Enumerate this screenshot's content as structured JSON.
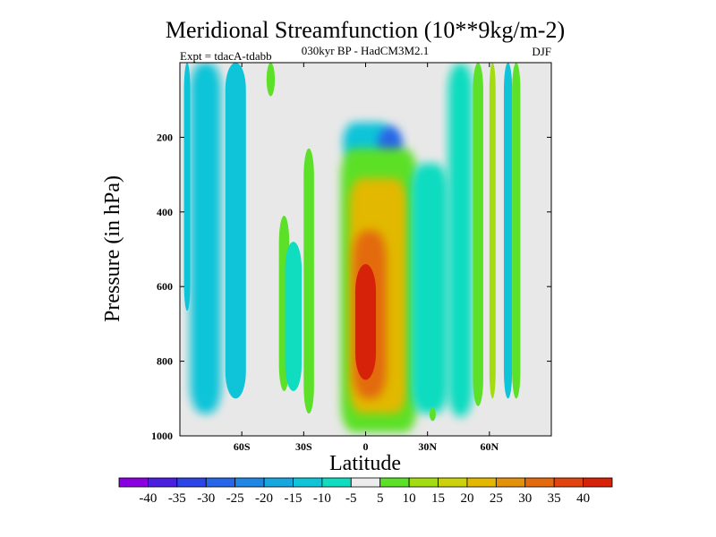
{
  "chart_data": {
    "type": "heatmap",
    "title": "Meridional Streamfunction (10**9kg/m-2)",
    "subtitle_center": "030kyr BP - HadCM3M2.1",
    "subtitle_left": "Expt = tdacA-tdabb",
    "subtitle_right": "DJF",
    "xlabel": "Latitude",
    "ylabel": "Pressure (in hPa)",
    "xlim": [
      -90,
      90
    ],
    "ylim": [
      1000,
      0
    ],
    "x_ticks": [
      {
        "value": -60,
        "label": "60S"
      },
      {
        "value": -30,
        "label": "30S"
      },
      {
        "value": 0,
        "label": "0"
      },
      {
        "value": 30,
        "label": "30N"
      },
      {
        "value": 60,
        "label": "60N"
      }
    ],
    "y_ticks": [
      {
        "value": 200,
        "label": "200"
      },
      {
        "value": 400,
        "label": "400"
      },
      {
        "value": 600,
        "label": "600"
      },
      {
        "value": 800,
        "label": "800"
      },
      {
        "value": 1000,
        "label": "1000"
      }
    ],
    "colorbar": {
      "labels": [
        "-40",
        "-35",
        "-30",
        "-25",
        "-20",
        "-15",
        "-10",
        "-5",
        "5",
        "10",
        "15",
        "20",
        "25",
        "30",
        "35",
        "40"
      ],
      "colors": [
        "#8a00e0",
        "#4a1fe0",
        "#2d44e6",
        "#2766e8",
        "#1f86e3",
        "#17a6de",
        "#0fc4d8",
        "#10dcc0",
        "#ececec",
        "#5ce028",
        "#a3dc10",
        "#cbd10a",
        "#e2b802",
        "#e3900a",
        "#e36a0f",
        "#e04510",
        "#d62208"
      ]
    },
    "regions": [
      {
        "value": -12,
        "lat": [
          -88,
          -85
        ],
        "p": [
          0,
          665
        ]
      },
      {
        "value": -12,
        "lat": [
          -85,
          -70
        ],
        "p": [
          0,
          940
        ]
      },
      {
        "value": -12,
        "lat": [
          -68,
          -58
        ],
        "p": [
          0,
          900
        ]
      },
      {
        "value": 7,
        "lat": [
          -48,
          -44
        ],
        "p": [
          0,
          90
        ]
      },
      {
        "value": 7,
        "lat": [
          -42,
          -37
        ],
        "p": [
          410,
          880
        ]
      },
      {
        "value": -7,
        "lat": [
          -39,
          -31
        ],
        "p": [
          480,
          880
        ]
      },
      {
        "value": 7,
        "lat": [
          -30,
          -25
        ],
        "p": [
          230,
          940
        ]
      },
      {
        "value": -12,
        "lat": [
          -11,
          13
        ],
        "p": [
          160,
          265
        ]
      },
      {
        "value": -28,
        "lat": [
          6,
          18
        ],
        "p": [
          170,
          270
        ]
      },
      {
        "value": 9,
        "lat": [
          -12,
          25
        ],
        "p": [
          230,
          990
        ]
      },
      {
        "value": 22,
        "lat": [
          -8,
          20
        ],
        "p": [
          310,
          940
        ]
      },
      {
        "value": 32,
        "lat": [
          -6,
          10
        ],
        "p": [
          450,
          900
        ]
      },
      {
        "value": 40,
        "lat": [
          -5,
          5
        ],
        "p": [
          540,
          850
        ]
      },
      {
        "value": -7,
        "lat": [
          22,
          40
        ],
        "p": [
          270,
          940
        ]
      },
      {
        "value": -10,
        "lat": [
          40,
          52
        ],
        "p": [
          0,
          950
        ]
      },
      {
        "value": 8,
        "lat": [
          31,
          34
        ],
        "p": [
          925,
          960
        ]
      },
      {
        "value": 7,
        "lat": [
          52,
          57
        ],
        "p": [
          0,
          920
        ]
      },
      {
        "value": 12,
        "lat": [
          60,
          63
        ],
        "p": [
          0,
          900
        ]
      },
      {
        "value": -12,
        "lat": [
          67,
          71
        ],
        "p": [
          0,
          900
        ]
      },
      {
        "value": 8,
        "lat": [
          71,
          75
        ],
        "p": [
          0,
          900
        ]
      }
    ]
  }
}
